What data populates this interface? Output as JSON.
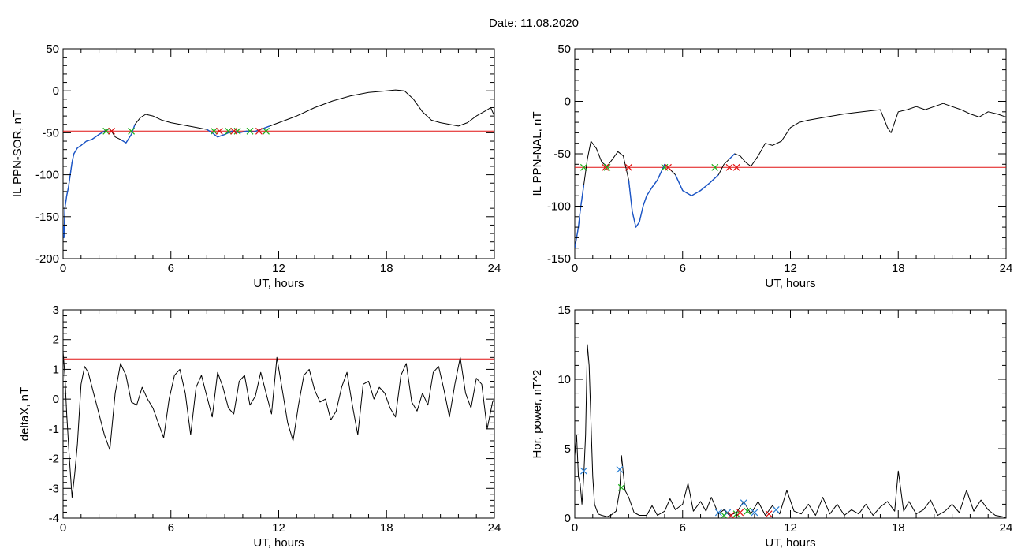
{
  "figure": {
    "title": "Date:  11.08.2020"
  },
  "colors": {
    "curve": "#000000",
    "highlight": "#1a55c8",
    "threshold": "#e01010",
    "start_marker": "#18b018",
    "end_marker": "#e01010",
    "power_marker": "#2a7fd4"
  },
  "chart_data": [
    {
      "id": "il-sor",
      "type": "line",
      "xlabel": "UT, hours",
      "ylabel": "IL PPN-SOR, nT",
      "xlim": [
        0,
        24
      ],
      "ylim": [
        -200,
        50
      ],
      "xticks": [
        0,
        6,
        12,
        18,
        24
      ],
      "yticks": [
        -200,
        -150,
        -100,
        -50,
        0,
        50
      ],
      "series": [
        {
          "x": [
            0,
            0.05,
            0.1,
            0.2,
            0.3,
            0.4,
            0.5,
            0.6,
            0.8,
            1.0,
            1.3,
            1.6,
            2.0,
            2.3,
            2.6,
            2.9,
            3.2,
            3.5,
            3.8,
            4.0,
            4.3,
            4.6,
            5.0,
            5.5,
            6.0,
            6.5,
            7.0,
            7.5,
            8.0,
            8.3,
            8.6,
            9.0,
            9.4,
            9.8,
            10.2,
            10.6,
            11.0,
            11.5,
            12.0,
            12.5,
            13.0,
            14.0,
            15.0,
            16.0,
            17.0,
            18.0,
            18.5,
            19.0,
            19.5,
            20.0,
            20.5,
            21.0,
            21.5,
            22.0,
            22.5,
            23.0,
            23.5,
            23.8,
            24.0
          ],
          "y": [
            -160,
            -175,
            -140,
            -125,
            -115,
            -100,
            -85,
            -75,
            -68,
            -65,
            -60,
            -58,
            -52,
            -48,
            -45,
            -55,
            -58,
            -62,
            -52,
            -40,
            -32,
            -28,
            -30,
            -35,
            -38,
            -40,
            -42,
            -44,
            -46,
            -50,
            -55,
            -52,
            -48,
            -50,
            -48,
            -49,
            -46,
            -42,
            -38,
            -34,
            -30,
            -20,
            -12,
            -6,
            -2,
            0,
            1,
            0,
            -10,
            -25,
            -35,
            -38,
            -40,
            -42,
            -38,
            -30,
            -24,
            -20,
            -30
          ]
        }
      ],
      "highlight_ranges": [
        [
          0,
          2.5
        ],
        [
          3.0,
          4.0
        ],
        [
          8.0,
          11.5
        ]
      ],
      "threshold": -48,
      "markers_start": [
        {
          "x": 2.4,
          "y": -48
        },
        {
          "x": 3.8,
          "y": -48
        },
        {
          "x": 8.4,
          "y": -48
        },
        {
          "x": 9.2,
          "y": -48
        },
        {
          "x": 9.7,
          "y": -48
        },
        {
          "x": 10.4,
          "y": -48
        },
        {
          "x": 11.3,
          "y": -48
        }
      ],
      "markers_end": [
        {
          "x": 2.7,
          "y": -48
        },
        {
          "x": 8.7,
          "y": -48
        },
        {
          "x": 9.5,
          "y": -48
        },
        {
          "x": 10.9,
          "y": -48
        }
      ]
    },
    {
      "id": "il-nal",
      "type": "line",
      "xlabel": "UT, hours",
      "ylabel": "IL PPN-NAL, nT",
      "xlim": [
        0,
        24
      ],
      "ylim": [
        -150,
        50
      ],
      "xticks": [
        0,
        6,
        12,
        18,
        24
      ],
      "yticks": [
        -150,
        -100,
        -50,
        0,
        50
      ],
      "series": [
        {
          "x": [
            0,
            0.1,
            0.2,
            0.3,
            0.5,
            0.7,
            0.9,
            1.2,
            1.5,
            1.8,
            2.1,
            2.4,
            2.7,
            3.0,
            3.2,
            3.4,
            3.6,
            3.8,
            4.0,
            4.3,
            4.6,
            5.0,
            5.3,
            5.6,
            6.0,
            6.5,
            7.0,
            7.5,
            8.0,
            8.3,
            8.6,
            8.9,
            9.2,
            9.5,
            9.8,
            10.2,
            10.6,
            11.0,
            11.5,
            12.0,
            12.5,
            13.0,
            14.0,
            15.0,
            16.0,
            17.0,
            17.4,
            17.6,
            18.0,
            18.5,
            19.0,
            19.5,
            20.0,
            20.5,
            21.0,
            21.5,
            22.0,
            22.5,
            23.0,
            23.5,
            24.0
          ],
          "y": [
            -140,
            -130,
            -120,
            -105,
            -80,
            -55,
            -38,
            -45,
            -58,
            -62,
            -55,
            -48,
            -52,
            -75,
            -105,
            -120,
            -115,
            -100,
            -90,
            -82,
            -75,
            -60,
            -65,
            -70,
            -85,
            -90,
            -85,
            -78,
            -70,
            -60,
            -55,
            -50,
            -52,
            -58,
            -62,
            -52,
            -40,
            -42,
            -38,
            -25,
            -20,
            -18,
            -15,
            -12,
            -10,
            -8,
            -25,
            -30,
            -10,
            -8,
            -5,
            -8,
            -5,
            -2,
            -5,
            -8,
            -12,
            -15,
            -10,
            -12,
            -15
          ]
        }
      ],
      "highlight_ranges": [
        [
          0,
          0.6
        ],
        [
          3.0,
          5.0
        ],
        [
          5.5,
          8.0
        ],
        [
          8.5,
          8.9
        ]
      ],
      "threshold": -63,
      "markers_start": [
        {
          "x": 0.5,
          "y": -63
        },
        {
          "x": 1.8,
          "y": -63
        },
        {
          "x": 5.0,
          "y": -63
        },
        {
          "x": 7.8,
          "y": -63
        }
      ],
      "markers_end": [
        {
          "x": 1.7,
          "y": -63
        },
        {
          "x": 3.0,
          "y": -63
        },
        {
          "x": 5.2,
          "y": -63
        },
        {
          "x": 8.6,
          "y": -63
        },
        {
          "x": 9.0,
          "y": -63
        }
      ]
    },
    {
      "id": "deltax",
      "type": "line",
      "xlabel": "UT, hours",
      "ylabel": "deltaX, nT",
      "xlim": [
        0,
        24
      ],
      "ylim": [
        -4,
        3
      ],
      "xticks": [
        0,
        6,
        12,
        18,
        24
      ],
      "yticks": [
        -4,
        -3,
        -2,
        -1,
        0,
        1,
        2,
        3
      ],
      "series": [
        {
          "x": [
            0,
            0.1,
            0.2,
            0.35,
            0.5,
            0.65,
            0.8,
            1.0,
            1.2,
            1.4,
            1.7,
            2.0,
            2.3,
            2.6,
            2.9,
            3.2,
            3.5,
            3.8,
            4.1,
            4.4,
            4.7,
            5.0,
            5.3,
            5.6,
            5.9,
            6.2,
            6.5,
            6.8,
            7.1,
            7.4,
            7.7,
            8.0,
            8.3,
            8.6,
            8.9,
            9.2,
            9.5,
            9.8,
            10.1,
            10.4,
            10.7,
            11.0,
            11.3,
            11.6,
            11.9,
            12.2,
            12.5,
            12.8,
            13.1,
            13.4,
            13.7,
            14.0,
            14.3,
            14.6,
            14.9,
            15.2,
            15.5,
            15.8,
            16.1,
            16.4,
            16.7,
            17.0,
            17.3,
            17.6,
            17.9,
            18.2,
            18.5,
            18.8,
            19.1,
            19.4,
            19.7,
            20.0,
            20.3,
            20.6,
            20.9,
            21.2,
            21.5,
            21.8,
            22.1,
            22.4,
            22.7,
            23.0,
            23.3,
            23.6,
            23.9,
            24.0
          ],
          "y": [
            1.6,
            0.8,
            -0.5,
            -2.0,
            -3.3,
            -2.5,
            -1.5,
            0.5,
            1.1,
            0.9,
            0.2,
            -0.5,
            -1.2,
            -1.7,
            0.2,
            1.2,
            0.8,
            -0.1,
            -0.2,
            0.4,
            0.0,
            -0.3,
            -0.8,
            -1.3,
            0.0,
            0.8,
            1.0,
            0.2,
            -1.2,
            0.4,
            0.8,
            0.1,
            -0.6,
            0.9,
            0.4,
            -0.3,
            -0.5,
            0.6,
            0.8,
            -0.2,
            0.1,
            0.9,
            0.2,
            -0.5,
            1.4,
            0.3,
            -0.8,
            -1.4,
            -0.2,
            0.8,
            1.0,
            0.3,
            -0.1,
            0.0,
            -0.7,
            -0.4,
            0.4,
            0.9,
            -0.2,
            -1.2,
            0.5,
            0.6,
            0.0,
            0.4,
            0.2,
            -0.3,
            -0.6,
            0.8,
            1.2,
            -0.1,
            -0.4,
            0.2,
            -0.2,
            0.9,
            1.1,
            0.3,
            -0.6,
            0.5,
            1.4,
            0.2,
            -0.3,
            0.7,
            0.5,
            -1.0,
            -0.1,
            0.0
          ]
        }
      ],
      "threshold": 1.35
    },
    {
      "id": "hor-power",
      "type": "line",
      "xlabel": "UT, hours",
      "ylabel": "Hor. power, nT^2",
      "xlim": [
        0,
        24
      ],
      "ylim": [
        0,
        15
      ],
      "xticks": [
        0,
        6,
        12,
        18,
        24
      ],
      "yticks": [
        0,
        5,
        10,
        15
      ],
      "series": [
        {
          "x": [
            0,
            0.1,
            0.2,
            0.3,
            0.4,
            0.5,
            0.6,
            0.7,
            0.8,
            0.9,
            1.0,
            1.1,
            1.3,
            1.5,
            1.8,
            2.0,
            2.3,
            2.5,
            2.6,
            2.8,
            3.0,
            3.3,
            3.6,
            4.0,
            4.3,
            4.6,
            5.0,
            5.3,
            5.6,
            6.0,
            6.3,
            6.6,
            7.0,
            7.3,
            7.6,
            8.0,
            8.3,
            8.6,
            9.0,
            9.4,
            9.8,
            10.2,
            10.6,
            11.0,
            11.4,
            11.8,
            12.2,
            12.6,
            13.0,
            13.4,
            13.8,
            14.2,
            14.6,
            15.0,
            15.4,
            15.8,
            16.2,
            16.6,
            17.0,
            17.4,
            17.8,
            18.0,
            18.3,
            18.6,
            19.0,
            19.4,
            19.8,
            20.2,
            20.6,
            21.0,
            21.4,
            21.8,
            22.2,
            22.6,
            23.0,
            23.4,
            23.8,
            24.0
          ],
          "y": [
            4.5,
            6.0,
            3.0,
            2.5,
            1.0,
            3.0,
            6.0,
            12.5,
            11.0,
            7.0,
            3.0,
            1.0,
            0.3,
            0.2,
            0.1,
            0.2,
            0.5,
            2.0,
            4.5,
            2.0,
            1.5,
            0.4,
            0.2,
            0.2,
            0.9,
            0.2,
            0.5,
            1.4,
            0.6,
            1.0,
            2.5,
            0.5,
            1.2,
            0.5,
            1.5,
            0.3,
            0.6,
            0.2,
            0.4,
            1.2,
            0.3,
            1.2,
            0.2,
            0.9,
            0.3,
            2.0,
            0.5,
            0.3,
            1.0,
            0.2,
            1.5,
            0.3,
            1.0,
            0.2,
            0.6,
            0.3,
            1.0,
            0.2,
            0.8,
            1.2,
            0.5,
            3.4,
            0.5,
            1.2,
            0.3,
            0.6,
            1.3,
            0.2,
            0.5,
            1.0,
            0.4,
            2.0,
            0.5,
            1.3,
            0.6,
            0.2,
            0.1,
            0.0
          ]
        }
      ],
      "markers_power": [
        {
          "x": 0.5,
          "y": 3.4
        },
        {
          "x": 2.5,
          "y": 3.5
        },
        {
          "x": 8.0,
          "y": 0.4
        },
        {
          "x": 8.5,
          "y": 0.4
        },
        {
          "x": 9.4,
          "y": 1.1
        },
        {
          "x": 10.0,
          "y": 0.4
        },
        {
          "x": 11.2,
          "y": 0.6
        }
      ],
      "markers_start": [
        {
          "x": 2.6,
          "y": 2.2
        },
        {
          "x": 8.3,
          "y": 0.2
        },
        {
          "x": 9.0,
          "y": 0.3
        },
        {
          "x": 9.6,
          "y": 0.5
        }
      ],
      "markers_end": [
        {
          "x": 8.7,
          "y": 0.2
        },
        {
          "x": 9.2,
          "y": 0.4
        },
        {
          "x": 10.8,
          "y": 0.3
        }
      ]
    }
  ]
}
